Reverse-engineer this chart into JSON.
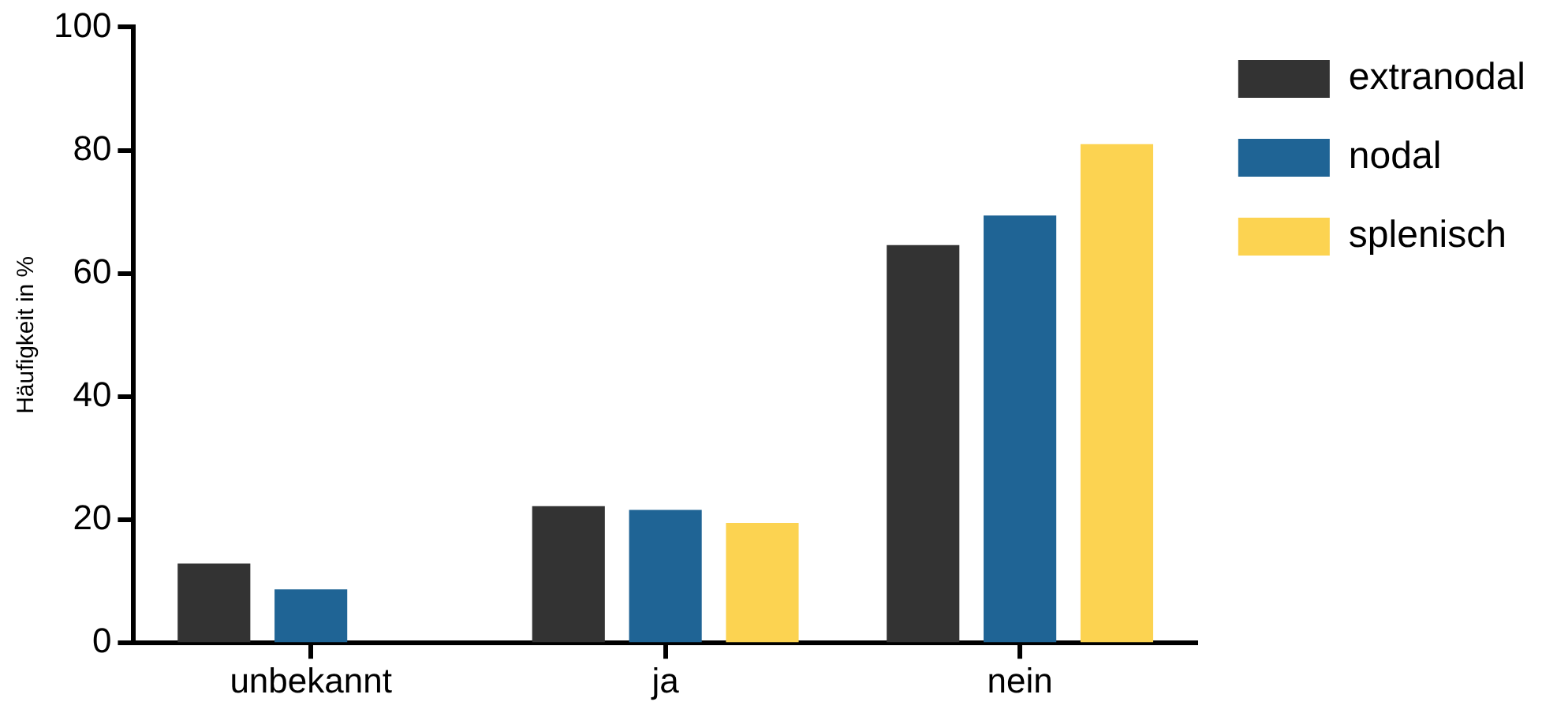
{
  "chart_data": {
    "type": "bar",
    "ylabel": "Häufigkeit in %",
    "categories": [
      "unbekannt",
      "ja",
      "nein"
    ],
    "series": [
      {
        "name": "extranodal",
        "color": "#333333",
        "values": [
          12.9,
          22.2,
          64.6
        ]
      },
      {
        "name": "nodal",
        "color": "#1f6495",
        "values": [
          8.7,
          21.6,
          69.4
        ]
      },
      {
        "name": "splenisch",
        "color": "#fcd351",
        "values": [
          0,
          19.5,
          81.0
        ]
      }
    ],
    "ylim": [
      0,
      100
    ],
    "yticks": [
      0,
      20,
      40,
      60,
      80,
      100
    ],
    "grid": false,
    "legend": "top right"
  }
}
